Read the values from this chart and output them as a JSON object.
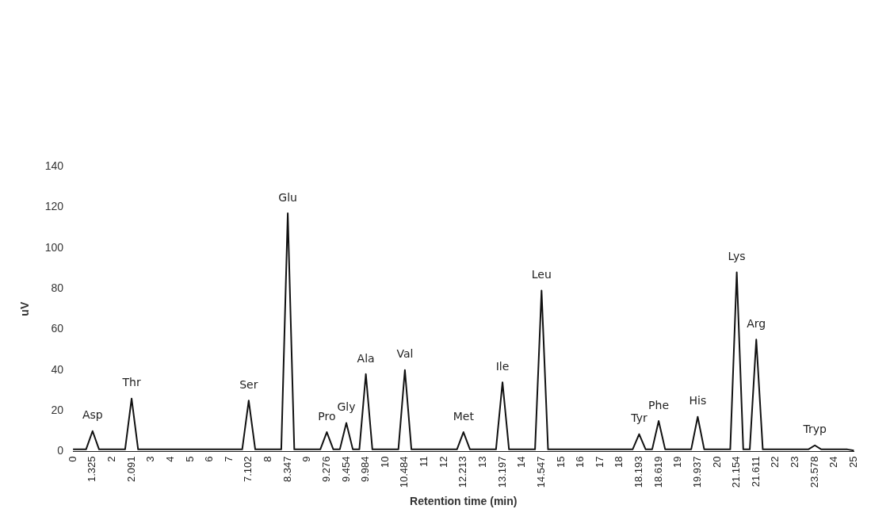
{
  "chart_data": {
    "type": "line",
    "xlabel": "Retention time (min)",
    "ylabel": "uV",
    "categories": [
      "0",
      null,
      null,
      "1.325",
      null,
      null,
      "2",
      null,
      null,
      "2.091",
      null,
      null,
      "3",
      null,
      null,
      "4",
      null,
      null,
      "5",
      null,
      null,
      "6",
      null,
      null,
      "7",
      null,
      null,
      "7.102",
      null,
      null,
      "8",
      null,
      null,
      "8.347",
      null,
      null,
      "9",
      null,
      null,
      "9.276",
      null,
      null,
      "9.454",
      null,
      null,
      "9.984",
      null,
      null,
      "10",
      null,
      null,
      "10.484",
      null,
      null,
      "11",
      null,
      null,
      "12",
      null,
      null,
      "12.213",
      null,
      null,
      "13",
      null,
      null,
      "13.197",
      null,
      null,
      "14",
      null,
      null,
      "14.547",
      null,
      null,
      "15",
      null,
      null,
      "16",
      null,
      null,
      "17",
      null,
      null,
      "18",
      null,
      null,
      "18.193",
      null,
      null,
      "18.619",
      null,
      null,
      "19",
      null,
      null,
      "19.937",
      null,
      null,
      "20",
      null,
      null,
      "21.154",
      null,
      null,
      "21.611",
      null,
      null,
      "22",
      null,
      null,
      "23",
      null,
      null,
      "23.578",
      null,
      null,
      "24",
      null,
      null,
      "25"
    ],
    "series": [
      {
        "color": "#111111",
        "values": [
          1,
          1,
          1,
          10,
          1,
          1,
          1,
          1,
          1,
          26,
          1,
          1,
          1,
          1,
          1,
          1,
          1,
          1,
          1,
          1,
          1,
          1,
          1,
          1,
          1,
          1,
          1,
          25,
          1,
          1,
          1,
          1,
          1,
          117,
          1,
          1,
          1,
          1,
          1,
          9.5,
          1,
          1,
          14,
          1,
          1,
          38,
          1,
          1,
          1,
          1,
          1,
          40,
          1,
          1,
          1,
          1,
          1,
          1,
          1,
          1,
          9.5,
          1,
          1,
          1,
          1,
          1,
          34,
          1,
          1,
          1,
          1,
          1,
          79,
          1,
          1,
          1,
          1,
          1,
          1,
          1,
          1,
          1,
          1,
          1,
          1,
          1,
          1,
          8.5,
          1,
          1,
          15,
          1,
          1,
          1,
          1,
          1,
          17,
          1,
          1,
          1,
          1,
          1,
          88,
          1,
          1,
          55,
          1,
          1,
          1,
          1,
          1,
          1,
          1,
          1,
          3,
          1,
          1,
          1,
          1,
          1,
          0.5
        ]
      }
    ],
    "ylim": [
      0,
      140
    ],
    "yticks": [
      0,
      20,
      40,
      60,
      80,
      100,
      120,
      140
    ],
    "grid": false,
    "legend": false,
    "marker": "none",
    "line_style": "solid",
    "annotations": [
      {
        "text": "Asp",
        "x": "1.325",
        "y": 10
      },
      {
        "text": "Thr",
        "x": "2.091",
        "y": 26
      },
      {
        "text": "Ser",
        "x": "7.102",
        "y": 25
      },
      {
        "text": "Glu",
        "x": "8.347",
        "y": 117
      },
      {
        "text": "Pro",
        "x": "9.276",
        "y": 9.5
      },
      {
        "text": "Gly",
        "x": "9.454",
        "y": 14
      },
      {
        "text": "Ala",
        "x": "9.984",
        "y": 38
      },
      {
        "text": "Val",
        "x": "10.484",
        "y": 40
      },
      {
        "text": "Met",
        "x": "12.213",
        "y": 9.5
      },
      {
        "text": "Ile",
        "x": "13.197",
        "y": 34
      },
      {
        "text": "Leu",
        "x": "14.547",
        "y": 79
      },
      {
        "text": "Tyr",
        "x": "18.193",
        "y": 8.5
      },
      {
        "text": "Phe",
        "x": "18.619",
        "y": 15
      },
      {
        "text": "His",
        "x": "19.937",
        "y": 17
      },
      {
        "text": "Lys",
        "x": "21.154",
        "y": 88
      },
      {
        "text": "Arg",
        "x": "21.611",
        "y": 55
      },
      {
        "text": "Tryp",
        "x": "23.578",
        "y": 3
      }
    ]
  }
}
